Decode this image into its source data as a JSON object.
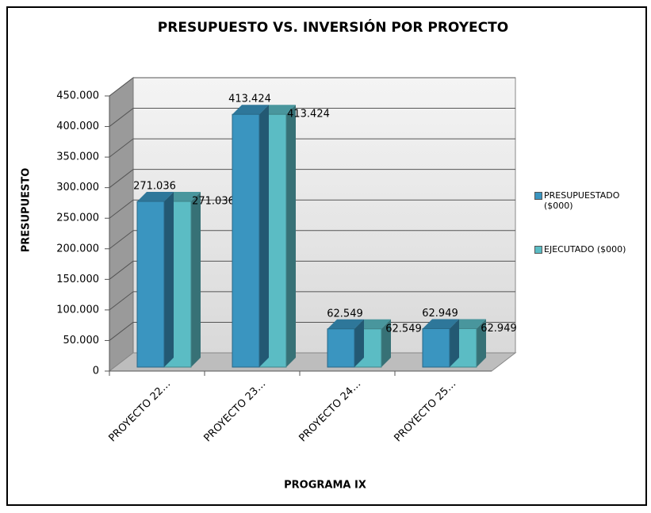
{
  "chart_data": {
    "type": "bar3d",
    "title": "PRESUPUESTO VS. INVERSIÓN POR PROYECTO",
    "x_label": "PROGRAMA IX",
    "y_label": "PRESUPUESTO",
    "categories": [
      "PROYECTO 22…",
      "PROYECTO 23…",
      "PROYECTO 24…",
      "PROYECTO 25…"
    ],
    "series": [
      {
        "name": "PRESUPUESTADO ($000)",
        "color": "#3a95c0",
        "values": [
          271036,
          413424,
          62549,
          62949
        ],
        "value_labels": [
          "271.036",
          "413.424",
          "62.549",
          "62.949"
        ]
      },
      {
        "name": "EJECUTADO ($000)",
        "color": "#5bbcc4",
        "values": [
          271036,
          413424,
          62549,
          62949
        ],
        "value_labels": [
          "271.036",
          "413.424",
          "62.549",
          "62.949"
        ]
      }
    ],
    "ylim": [
      0,
      450000
    ],
    "yticks": [
      0,
      {
        "value": 50000,
        "label": "50.000"
      },
      {
        "value": 100000,
        "label": "100.000"
      },
      {
        "value": 150000,
        "label": "150.000"
      },
      {
        "value": 200000,
        "label": "200.000"
      },
      {
        "value": 250000,
        "label": "250.000"
      },
      {
        "value": 300000,
        "label": "300.000"
      },
      {
        "value": 350000,
        "label": "350.000"
      },
      {
        "value": 400000,
        "label": "400.000"
      },
      {
        "value": 450000,
        "label": "450.000"
      }
    ],
    "grid": true,
    "legend": "right"
  }
}
